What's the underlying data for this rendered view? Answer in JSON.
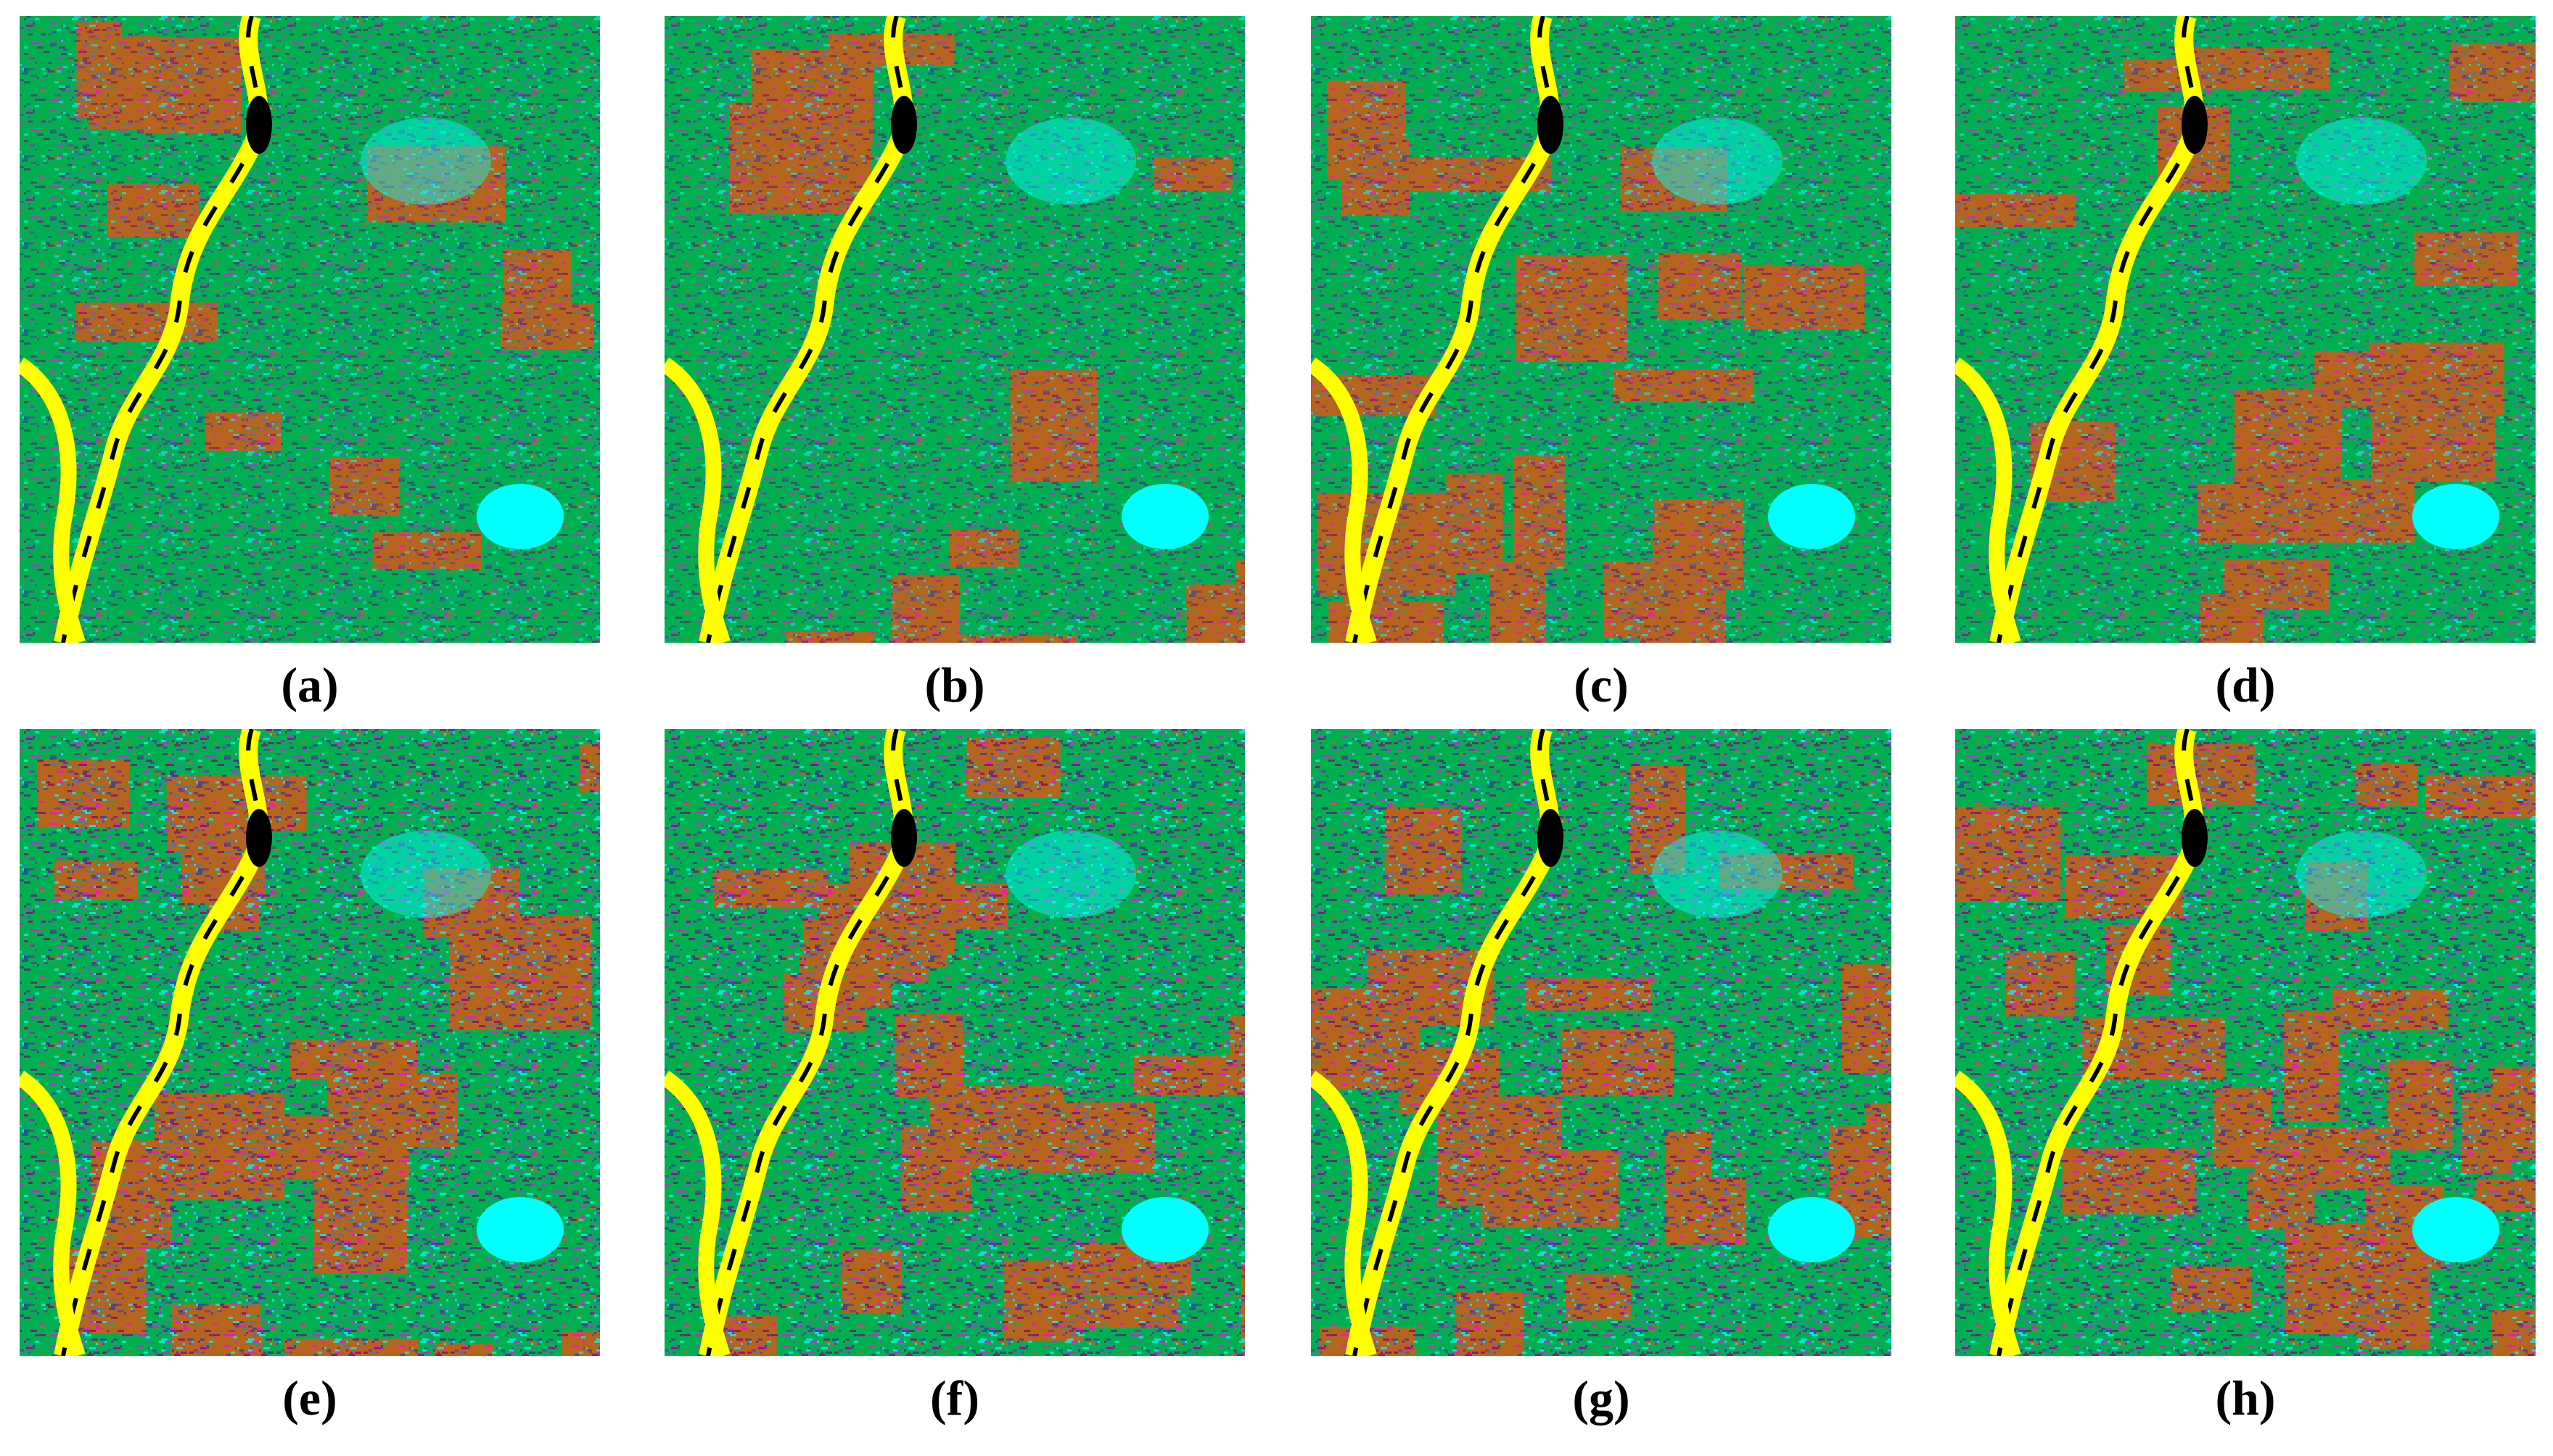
{
  "figure": {
    "panels": [
      {
        "label": "(a)"
      },
      {
        "label": "(b)"
      },
      {
        "label": "(c)"
      },
      {
        "label": "(d)"
      },
      {
        "label": "(e)"
      },
      {
        "label": "(f)"
      },
      {
        "label": "(g)"
      },
      {
        "label": "(h)"
      }
    ]
  }
}
